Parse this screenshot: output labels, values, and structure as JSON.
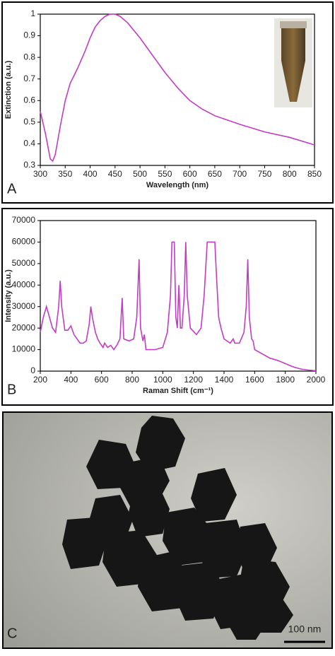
{
  "chart_data": [
    {
      "type": "line",
      "panel_label": "A",
      "x_label": "Wavelength (nm)",
      "y_label": "Extinction (a.u.)",
      "color": "#c23cc4",
      "x": [
        300,
        310,
        320,
        325,
        330,
        340,
        350,
        360,
        375,
        390,
        400,
        410,
        420,
        430,
        440,
        450,
        460,
        475,
        500,
        525,
        550,
        575,
        600,
        625,
        650,
        675,
        700,
        750,
        800,
        850
      ],
      "values": [
        0.55,
        0.45,
        0.33,
        0.32,
        0.35,
        0.48,
        0.6,
        0.68,
        0.75,
        0.83,
        0.89,
        0.94,
        0.97,
        0.99,
        1.0,
        1.0,
        0.99,
        0.96,
        0.89,
        0.81,
        0.73,
        0.66,
        0.6,
        0.56,
        0.53,
        0.51,
        0.49,
        0.455,
        0.43,
        0.395
      ],
      "xlim": [
        300,
        850
      ],
      "xticks": [
        300,
        350,
        400,
        450,
        500,
        550,
        600,
        650,
        700,
        750,
        800,
        850
      ],
      "ylim": [
        0.3,
        1
      ],
      "yticks": [
        0.3,
        0.4,
        0.5,
        0.6,
        0.7,
        0.8,
        0.9,
        1
      ]
    },
    {
      "type": "line",
      "panel_label": "B",
      "x_label": "Raman Shift (cm⁻¹)",
      "y_label": "Intensity (a.u.)",
      "color": "#c23cc4",
      "x": [
        200,
        220,
        240,
        260,
        280,
        300,
        320,
        330,
        340,
        360,
        380,
        400,
        420,
        440,
        460,
        480,
        500,
        520,
        530,
        540,
        560,
        575,
        590,
        610,
        620,
        640,
        660,
        680,
        700,
        720,
        735,
        745,
        780,
        810,
        830,
        845,
        855,
        870,
        880,
        890,
        950,
        1000,
        1030,
        1050,
        1060,
        1075,
        1085,
        1095,
        1105,
        1115,
        1125,
        1140,
        1150,
        1160,
        1180,
        1220,
        1250,
        1270,
        1290,
        1340,
        1350,
        1365,
        1380,
        1400,
        1420,
        1440,
        1460,
        1470,
        1500,
        1530,
        1545,
        1555,
        1565,
        1580,
        1590,
        1600,
        1650,
        1700,
        1750,
        1800,
        1850,
        1900,
        1950,
        2000
      ],
      "values": [
        18000,
        25000,
        30000,
        25000,
        20000,
        18000,
        30000,
        42000,
        30000,
        19000,
        19000,
        21000,
        17000,
        15000,
        13000,
        13000,
        14000,
        22000,
        30000,
        25000,
        18000,
        15000,
        13000,
        11000,
        13000,
        11000,
        12000,
        10000,
        12000,
        15000,
        34000,
        15000,
        14000,
        15000,
        25000,
        52000,
        20000,
        14000,
        17000,
        10000,
        10000,
        11000,
        18000,
        35000,
        60000,
        60000,
        25000,
        20000,
        40000,
        20000,
        20000,
        35000,
        60000,
        35000,
        20000,
        17000,
        20000,
        35000,
        60000,
        60000,
        45000,
        25000,
        20000,
        15000,
        14000,
        13000,
        15000,
        13000,
        13000,
        18000,
        30000,
        52000,
        25000,
        15000,
        14000,
        10000,
        8000,
        6000,
        5000,
        3500,
        2000,
        1000,
        500,
        200
      ],
      "xlim": [
        200,
        2000
      ],
      "xticks": [
        200,
        400,
        600,
        800,
        1000,
        1200,
        1400,
        1600,
        1800,
        2000
      ],
      "ylim": [
        0,
        70000
      ],
      "yticks": [
        0,
        10000,
        20000,
        30000,
        40000,
        50000,
        60000,
        70000
      ]
    }
  ],
  "image_panel": {
    "label": "C",
    "scale_bar": "100 nm"
  }
}
